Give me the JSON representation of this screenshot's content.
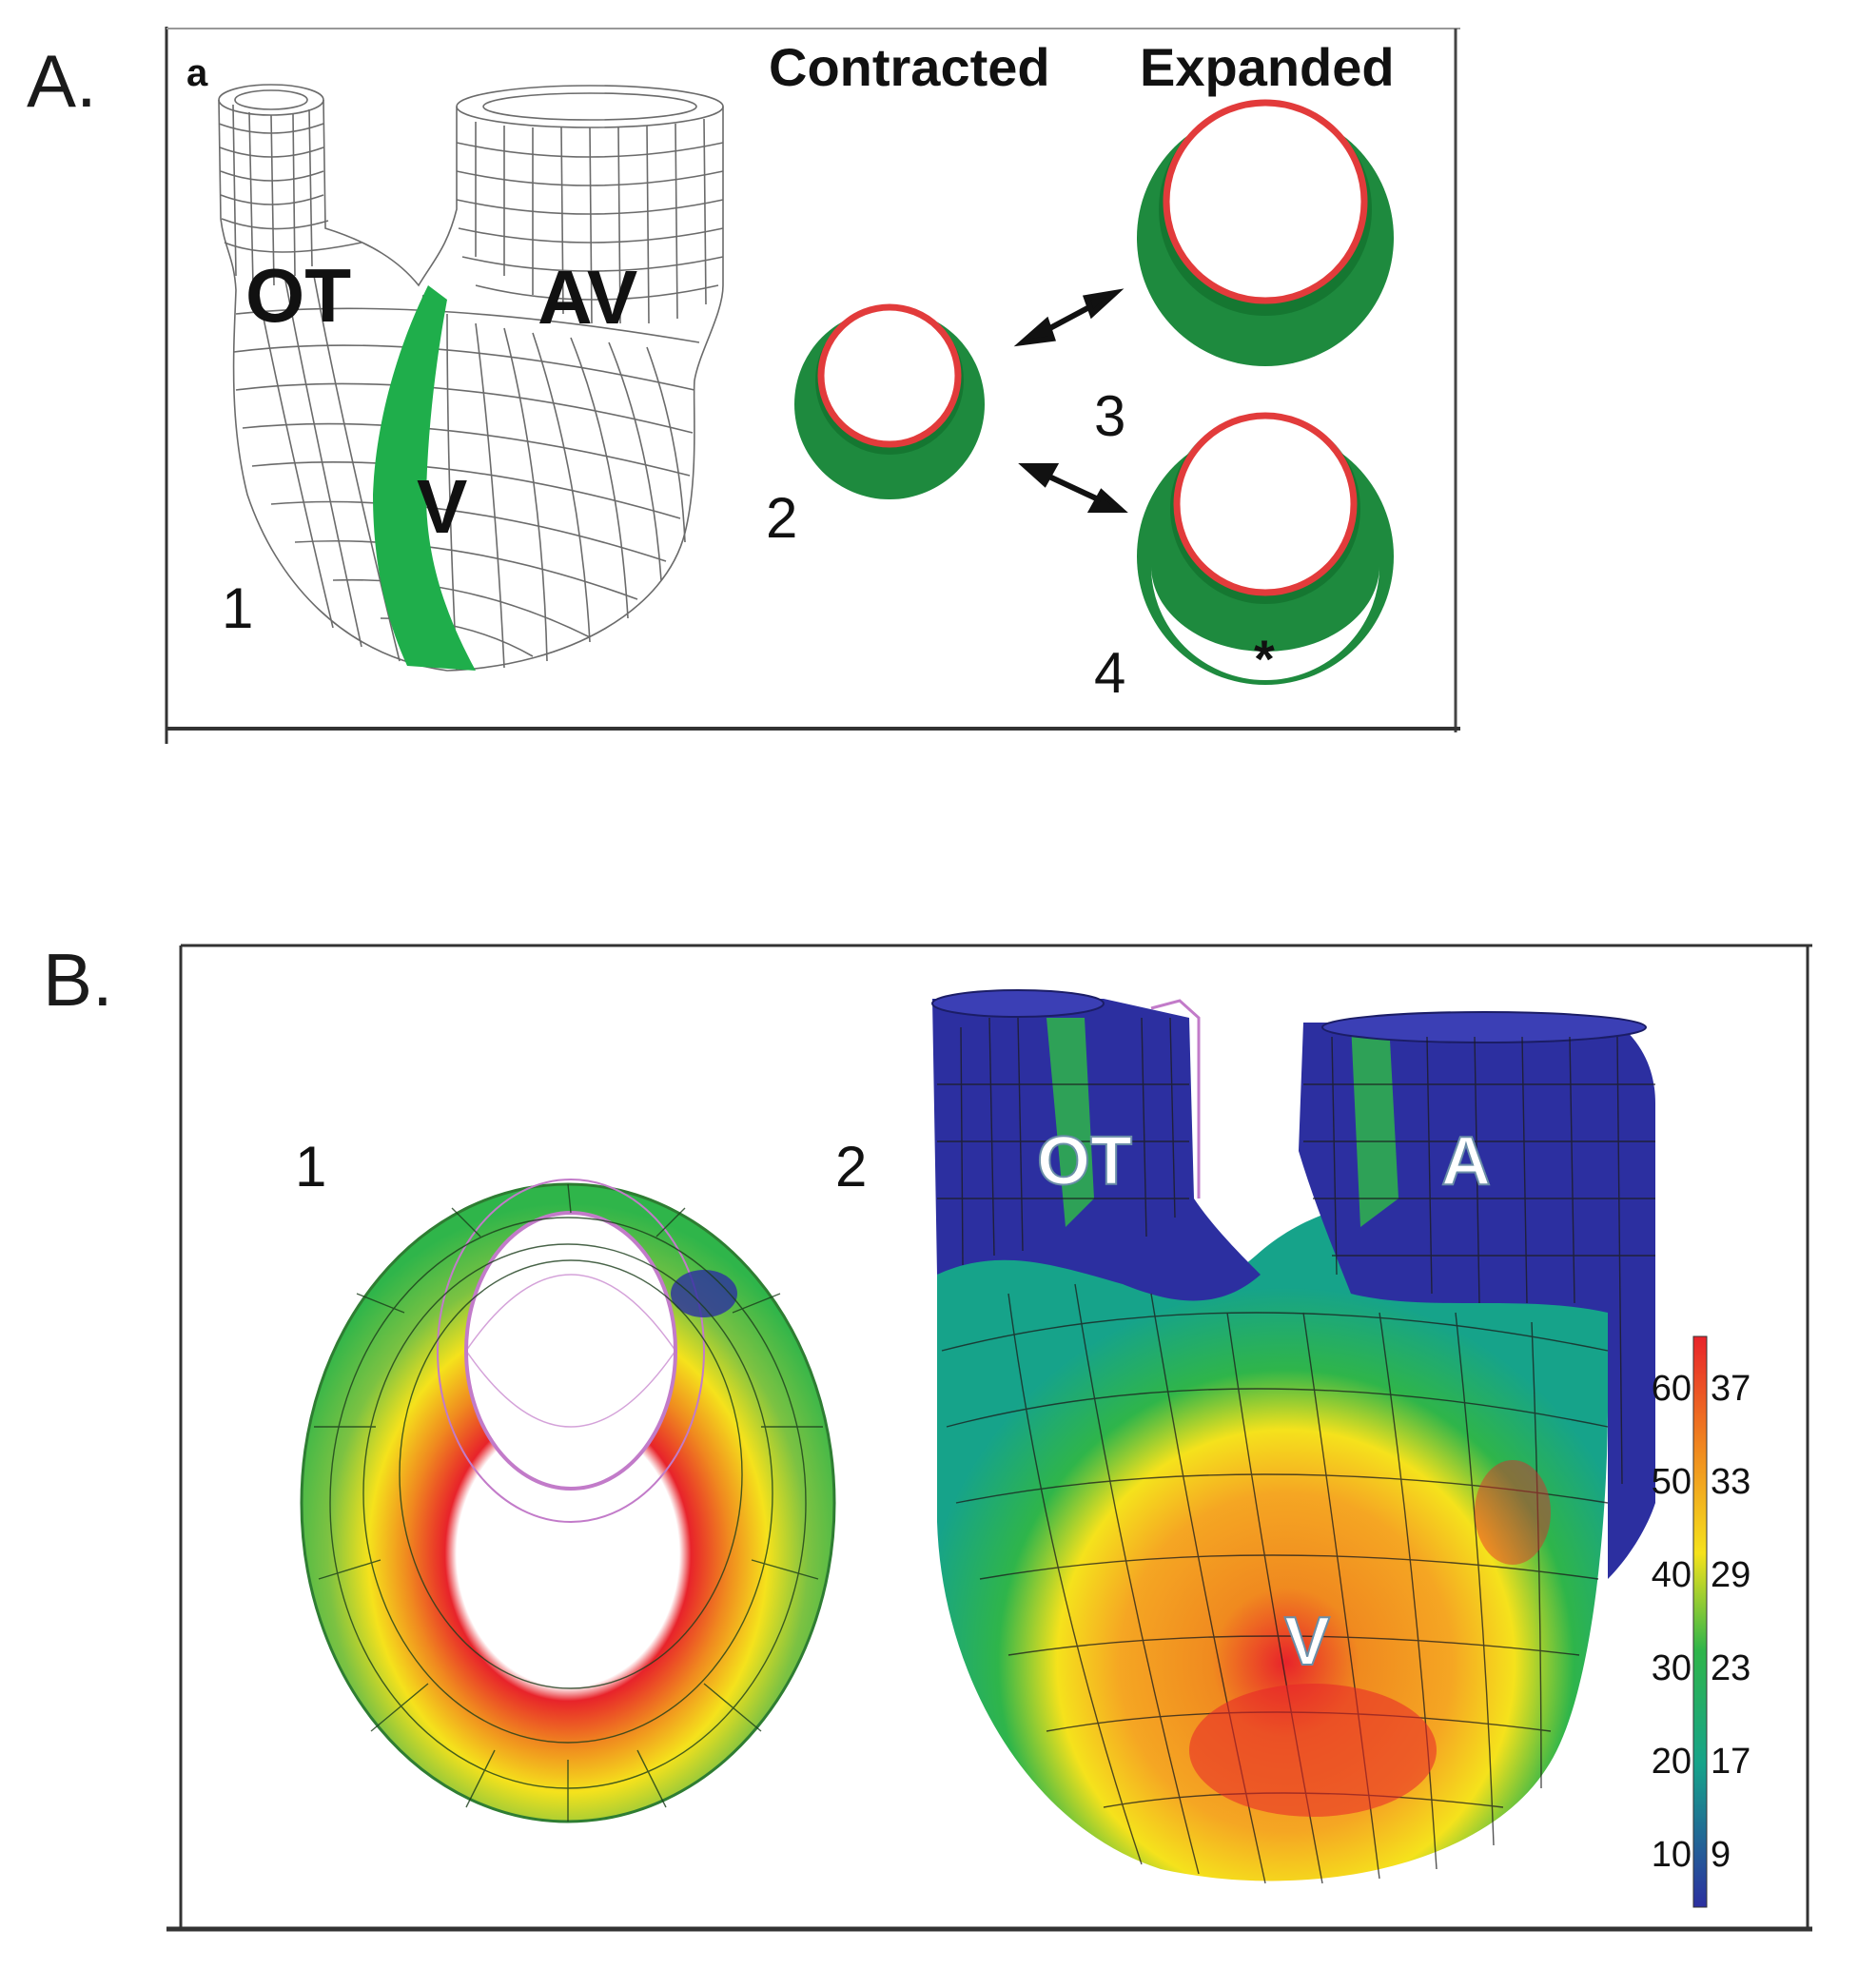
{
  "figure": {
    "panel_a": {
      "letter": "A.",
      "sub_letter": "a",
      "tube_labels": {
        "outflow": "OT",
        "atrioventricular": "AV",
        "ventricle": "V"
      },
      "state_headers": {
        "contracted": "Contracted",
        "expanded": "Expanded"
      },
      "item_numbers": [
        "1",
        "2",
        "3",
        "4"
      ],
      "asterisk": "*",
      "colors": {
        "myocardium": "#1e8a3e",
        "band": "#1fae4b",
        "endocardium_ring": "#e23b3b",
        "mesh": "#6b6b6b"
      }
    },
    "panel_b": {
      "letter": "B.",
      "item_numbers": [
        "1",
        "2"
      ],
      "tube_labels": {
        "outflow": "OT",
        "atrium": "A",
        "ventricle": "V"
      },
      "colorbar": {
        "left_ticks": [
          "60",
          "50",
          "40",
          "30",
          "20",
          "10"
        ],
        "right_ticks": [
          "37",
          "33",
          "29",
          "23",
          "17",
          "9"
        ],
        "colors": [
          "#e8232a",
          "#f08a1f",
          "#f5e21c",
          "#2fb54a",
          "#16a38a",
          "#2c2fa0"
        ]
      }
    }
  }
}
